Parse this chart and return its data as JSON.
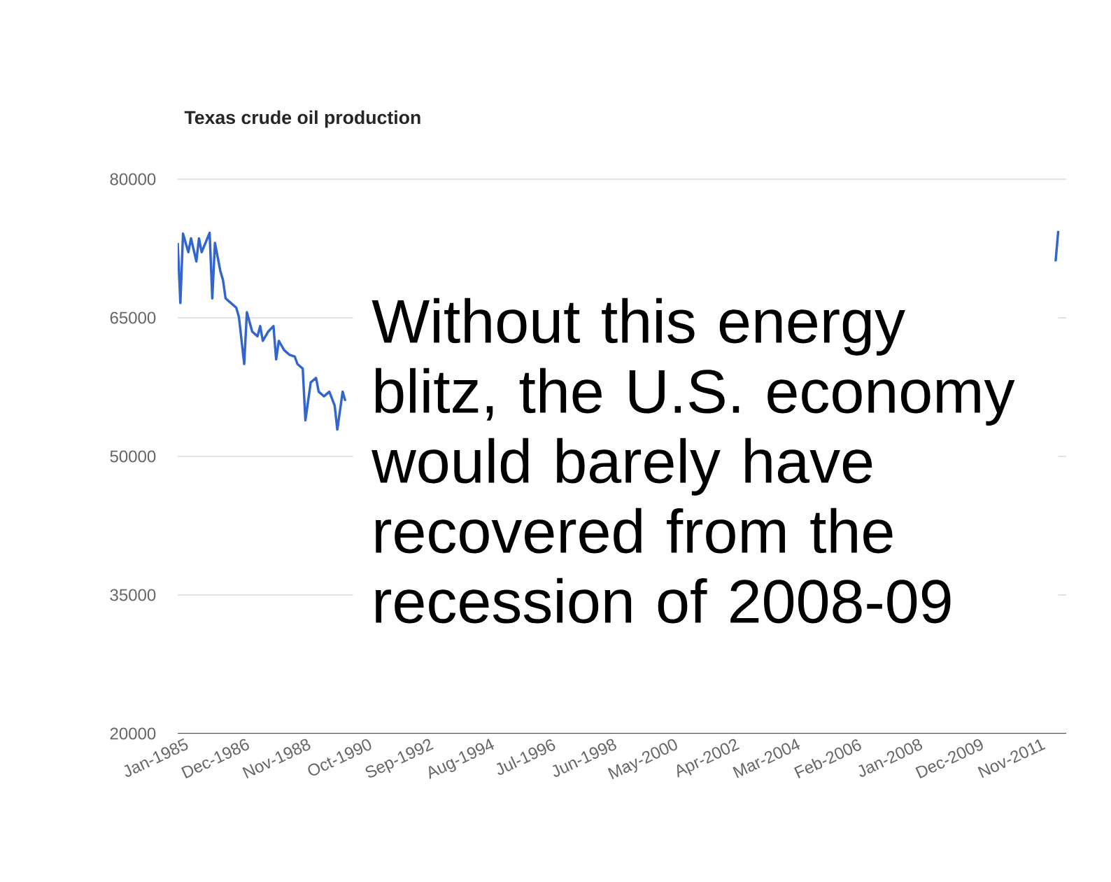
{
  "chart_data": {
    "type": "line",
    "title": "Texas crude oil production",
    "grid": "y",
    "annotations": [
      "Without this energy blitz, the U.S. economy would barely have recovered from the recession of 2008-09"
    ],
    "x": [
      "1985-01",
      "1985-02",
      "1985-03",
      "1985-05",
      "1985-06",
      "1985-08",
      "1985-09",
      "1985-10",
      "1986-01",
      "1986-02",
      "1986-03",
      "1986-05",
      "1986-06",
      "1986-07",
      "1986-09",
      "1986-11",
      "1986-12",
      "1987-02",
      "1987-03",
      "1987-05",
      "1987-07",
      "1987-08",
      "1987-09",
      "1987-11",
      "1988-01",
      "1988-02",
      "1988-03",
      "1988-05",
      "1988-07",
      "1988-09",
      "1988-10",
      "1988-12",
      "1989-01",
      "1989-03",
      "1989-05",
      "1989-06",
      "1989-08",
      "1989-10",
      "1989-12",
      "1990-01",
      "1990-03",
      "1990-04",
      "1990-07",
      "2012-06",
      "2012-07",
      "2012-08"
    ],
    "series": [
      {
        "color": "#3366cc",
        "values": [
          73100,
          66600,
          74100,
          72100,
          73600,
          71100,
          73600,
          72100,
          74200,
          67100,
          73100,
          70100,
          69100,
          67100,
          66600,
          66100,
          65100,
          60000,
          65600,
          63500,
          63000,
          64100,
          62500,
          63500,
          64100,
          60500,
          62500,
          61500,
          61000,
          60800,
          60000,
          59500,
          53900,
          58000,
          58500,
          57000,
          56500,
          57000,
          55500,
          52900,
          57000,
          56000,
          null,
          null,
          71100,
          74400
        ]
      }
    ],
    "xlim": [
      "1985-01",
      "2012-11"
    ],
    "xticks": [
      {
        "value": "1985-01",
        "label": "Jan-1985"
      },
      {
        "value": "1986-12",
        "label": "Dec-1986"
      },
      {
        "value": "1988-11",
        "label": "Nov-1988"
      },
      {
        "value": "1990-10",
        "label": "Oct-1990"
      },
      {
        "value": "1992-09",
        "label": "Sep-1992"
      },
      {
        "value": "1994-08",
        "label": "Aug-1994"
      },
      {
        "value": "1996-07",
        "label": "Jul-1996"
      },
      {
        "value": "1998-06",
        "label": "Jun-1998"
      },
      {
        "value": "2000-05",
        "label": "May-2000"
      },
      {
        "value": "2002-04",
        "label": "Apr-2002"
      },
      {
        "value": "2004-03",
        "label": "Mar-2004"
      },
      {
        "value": "2006-02",
        "label": "Feb-2006"
      },
      {
        "value": "2008-01",
        "label": "Jan-2008"
      },
      {
        "value": "2009-12",
        "label": "Dec-2009"
      },
      {
        "value": "2011-11",
        "label": "Nov-2011"
      }
    ],
    "ylim": [
      20000,
      80000
    ],
    "yticks": [
      20000,
      35000,
      50000,
      65000,
      80000
    ]
  }
}
